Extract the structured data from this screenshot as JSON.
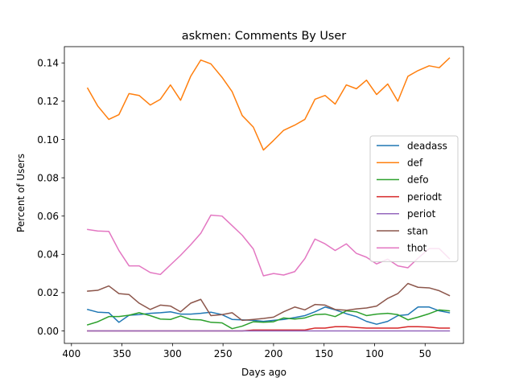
{
  "chart_data": {
    "type": "line",
    "title": "askmen: Comments By User",
    "xlabel": "Days ago",
    "ylabel": "Percent of Users",
    "xlim": [
      407,
      12
    ],
    "ylim": [
      -0.0065,
      0.1485
    ],
    "x_ticks": [
      400,
      350,
      300,
      250,
      200,
      150,
      100,
      50
    ],
    "y_ticks": [
      0.0,
      0.02,
      0.04,
      0.06,
      0.08,
      0.1,
      0.12,
      0.14
    ],
    "y_tick_labels": [
      "0.00",
      "0.02",
      "0.04",
      "0.06",
      "0.08",
      "0.10",
      "0.12",
      "0.14"
    ],
    "grid": false,
    "legend_position": "center-right",
    "x": [
      384,
      374,
      363,
      353,
      343,
      333,
      322,
      312,
      302,
      292,
      282,
      272,
      262,
      251,
      241,
      231,
      220,
      210,
      200,
      190,
      179,
      169,
      159,
      149,
      139,
      128,
      118,
      108,
      98,
      87,
      77,
      67,
      57,
      46,
      36,
      26
    ],
    "series": [
      {
        "name": "deadass",
        "color": "#1f77b4",
        "values": [
          0.0112,
          0.0098,
          0.0095,
          0.0045,
          0.0082,
          0.0085,
          0.0092,
          0.0095,
          0.01,
          0.0088,
          0.0088,
          0.0092,
          0.0098,
          0.0085,
          0.006,
          0.0058,
          0.0055,
          0.005,
          0.0055,
          0.006,
          0.007,
          0.008,
          0.01,
          0.0125,
          0.011,
          0.009,
          0.0075,
          0.005,
          0.0035,
          0.005,
          0.008,
          0.0085,
          0.0125,
          0.0125,
          0.0105,
          0.0095
        ]
      },
      {
        "name": "def",
        "color": "#ff7f0e",
        "values": [
          0.1268,
          0.1175,
          0.1105,
          0.113,
          0.124,
          0.123,
          0.118,
          0.121,
          0.1285,
          0.1205,
          0.133,
          0.1415,
          0.1395,
          0.1325,
          0.125,
          0.1125,
          0.1065,
          0.0945,
          0.0995,
          0.1048,
          0.1075,
          0.1105,
          0.121,
          0.123,
          0.1185,
          0.1285,
          0.1265,
          0.131,
          0.1235,
          0.129,
          0.12,
          0.133,
          0.136,
          0.1385,
          0.1375,
          0.1425
        ]
      },
      {
        "name": "defo",
        "color": "#2ca02c",
        "values": [
          0.0032,
          0.0048,
          0.0075,
          0.0075,
          0.0082,
          0.0095,
          0.008,
          0.0062,
          0.006,
          0.0078,
          0.006,
          0.0058,
          0.0045,
          0.0042,
          0.0012,
          0.0025,
          0.0048,
          0.0045,
          0.0048,
          0.0068,
          0.0062,
          0.0068,
          0.0085,
          0.0088,
          0.0075,
          0.0105,
          0.01,
          0.008,
          0.0088,
          0.0092,
          0.0085,
          0.0058,
          0.0072,
          0.009,
          0.011,
          0.0105
        ]
      },
      {
        "name": "periodt",
        "color": "#d62728",
        "values": [
          0.0,
          0.0,
          0.0,
          0.0,
          0.0,
          0.0,
          0.0,
          0.0,
          0.0,
          0.0,
          0.0,
          0.0,
          0.0,
          0.0,
          0.0,
          0.0,
          0.0005,
          0.0005,
          0.0005,
          0.0005,
          0.0005,
          0.0005,
          0.0015,
          0.0015,
          0.0022,
          0.0022,
          0.0018,
          0.0015,
          0.0015,
          0.0015,
          0.0015,
          0.0022,
          0.0022,
          0.002,
          0.0015,
          0.0015
        ]
      },
      {
        "name": "periot",
        "color": "#9467bd",
        "values": [
          0.0,
          0.0,
          0.0,
          0.0,
          0.0,
          0.0,
          0.0,
          0.0,
          0.0,
          0.0,
          0.0,
          0.0,
          0.0,
          0.0,
          0.0,
          0.0,
          0.0,
          0.0,
          0.0,
          0.0,
          0.0,
          0.0,
          0.0,
          0.0,
          0.0,
          0.0,
          0.0,
          0.0,
          0.0,
          0.0,
          0.0,
          0.0,
          0.0,
          0.0,
          0.0,
          0.0
        ]
      },
      {
        "name": "stan",
        "color": "#8c564b",
        "values": [
          0.0208,
          0.0212,
          0.0235,
          0.0195,
          0.019,
          0.0145,
          0.0112,
          0.0135,
          0.013,
          0.01,
          0.0145,
          0.0165,
          0.008,
          0.0085,
          0.0095,
          0.0055,
          0.006,
          0.0065,
          0.0072,
          0.01,
          0.0125,
          0.011,
          0.0138,
          0.0135,
          0.0112,
          0.0108,
          0.0115,
          0.012,
          0.013,
          0.017,
          0.0195,
          0.0248,
          0.0228,
          0.0225,
          0.021,
          0.0185
        ]
      },
      {
        "name": "thot",
        "color": "#e377c2",
        "values": [
          0.053,
          0.0522,
          0.052,
          0.042,
          0.034,
          0.034,
          0.0305,
          0.0295,
          0.0345,
          0.0395,
          0.045,
          0.051,
          0.0605,
          0.06,
          0.055,
          0.05,
          0.0428,
          0.0288,
          0.03,
          0.0292,
          0.031,
          0.0378,
          0.048,
          0.0455,
          0.042,
          0.0455,
          0.0405,
          0.0385,
          0.035,
          0.0375,
          0.034,
          0.033,
          0.038,
          0.043,
          0.043,
          0.0378
        ]
      }
    ]
  }
}
